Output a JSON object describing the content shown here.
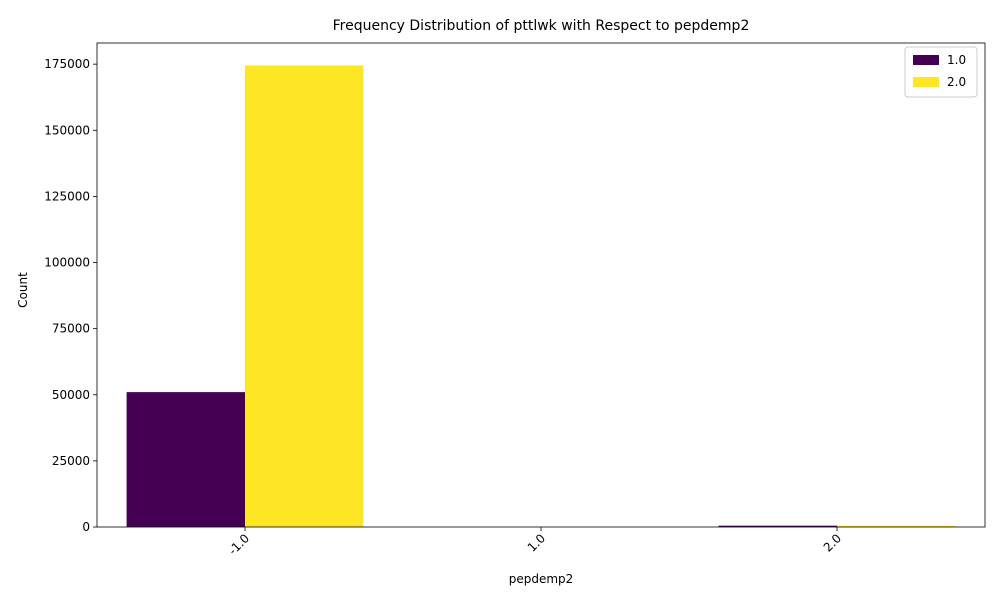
{
  "chart_data": {
    "type": "bar",
    "title": "Frequency Distribution of pttlwk with Respect to pepdemp2",
    "xlabel": "pepdemp2",
    "ylabel": "Count",
    "categories": [
      "-1.0",
      "1.0",
      "2.0"
    ],
    "series": [
      {
        "name": "1.0",
        "color": "#440154",
        "values": [
          51000,
          0,
          500
        ]
      },
      {
        "name": "2.0",
        "color": "#fde725",
        "values": [
          174500,
          0,
          450
        ]
      }
    ],
    "ylim": [
      0,
      183000
    ],
    "yticks": [
      0,
      25000,
      50000,
      75000,
      100000,
      125000,
      150000,
      175000
    ],
    "legend_position": "top-right",
    "grid": false
  }
}
